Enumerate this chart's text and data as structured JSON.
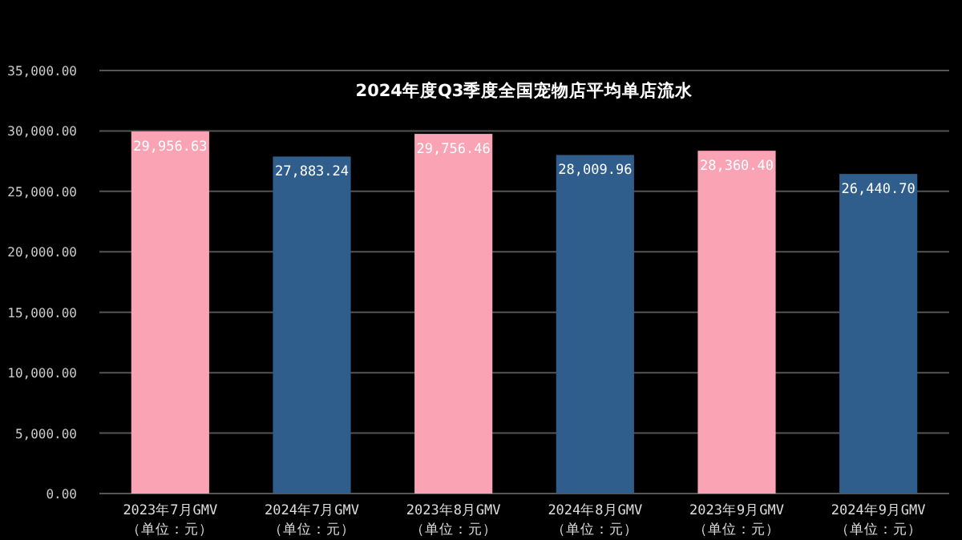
{
  "chart_data": {
    "type": "bar",
    "title": "2024年度Q3季度全国宠物店平均单店流水",
    "categories": [
      "2023年7月GMV\n（单位：元）",
      "2024年7月GMV\n（单位：元）",
      "2023年8月GMV\n（单位：元）",
      "2024年8月GMV\n（单位：元）",
      "2023年9月GMV\n（单位：元）",
      "2024年9月GMV\n（单位：元）"
    ],
    "values": [
      29956.63,
      27883.24,
      29756.46,
      28009.96,
      28360.4,
      26440.7
    ],
    "value_labels": [
      "29,956.63",
      "27,883.24",
      "29,756.46",
      "28,009.96",
      "28,360.40",
      "26,440.70"
    ],
    "colors": [
      "#f9a3b5",
      "#2f5d8c",
      "#f9a3b5",
      "#2f5d8c",
      "#f9a3b5",
      "#2f5d8c"
    ],
    "ylim": [
      0,
      35000
    ],
    "yticks": [
      {
        "value": 0,
        "label": "0.00"
      },
      {
        "value": 5000,
        "label": "5,000.00"
      },
      {
        "value": 10000,
        "label": "10,000.00"
      },
      {
        "value": 15000,
        "label": "15,000.00"
      },
      {
        "value": 20000,
        "label": "20,000.00"
      },
      {
        "value": 25000,
        "label": "25,000.00"
      },
      {
        "value": 30000,
        "label": "30,000.00"
      },
      {
        "value": 35000,
        "label": "35,000.00"
      }
    ],
    "grid": "y"
  }
}
